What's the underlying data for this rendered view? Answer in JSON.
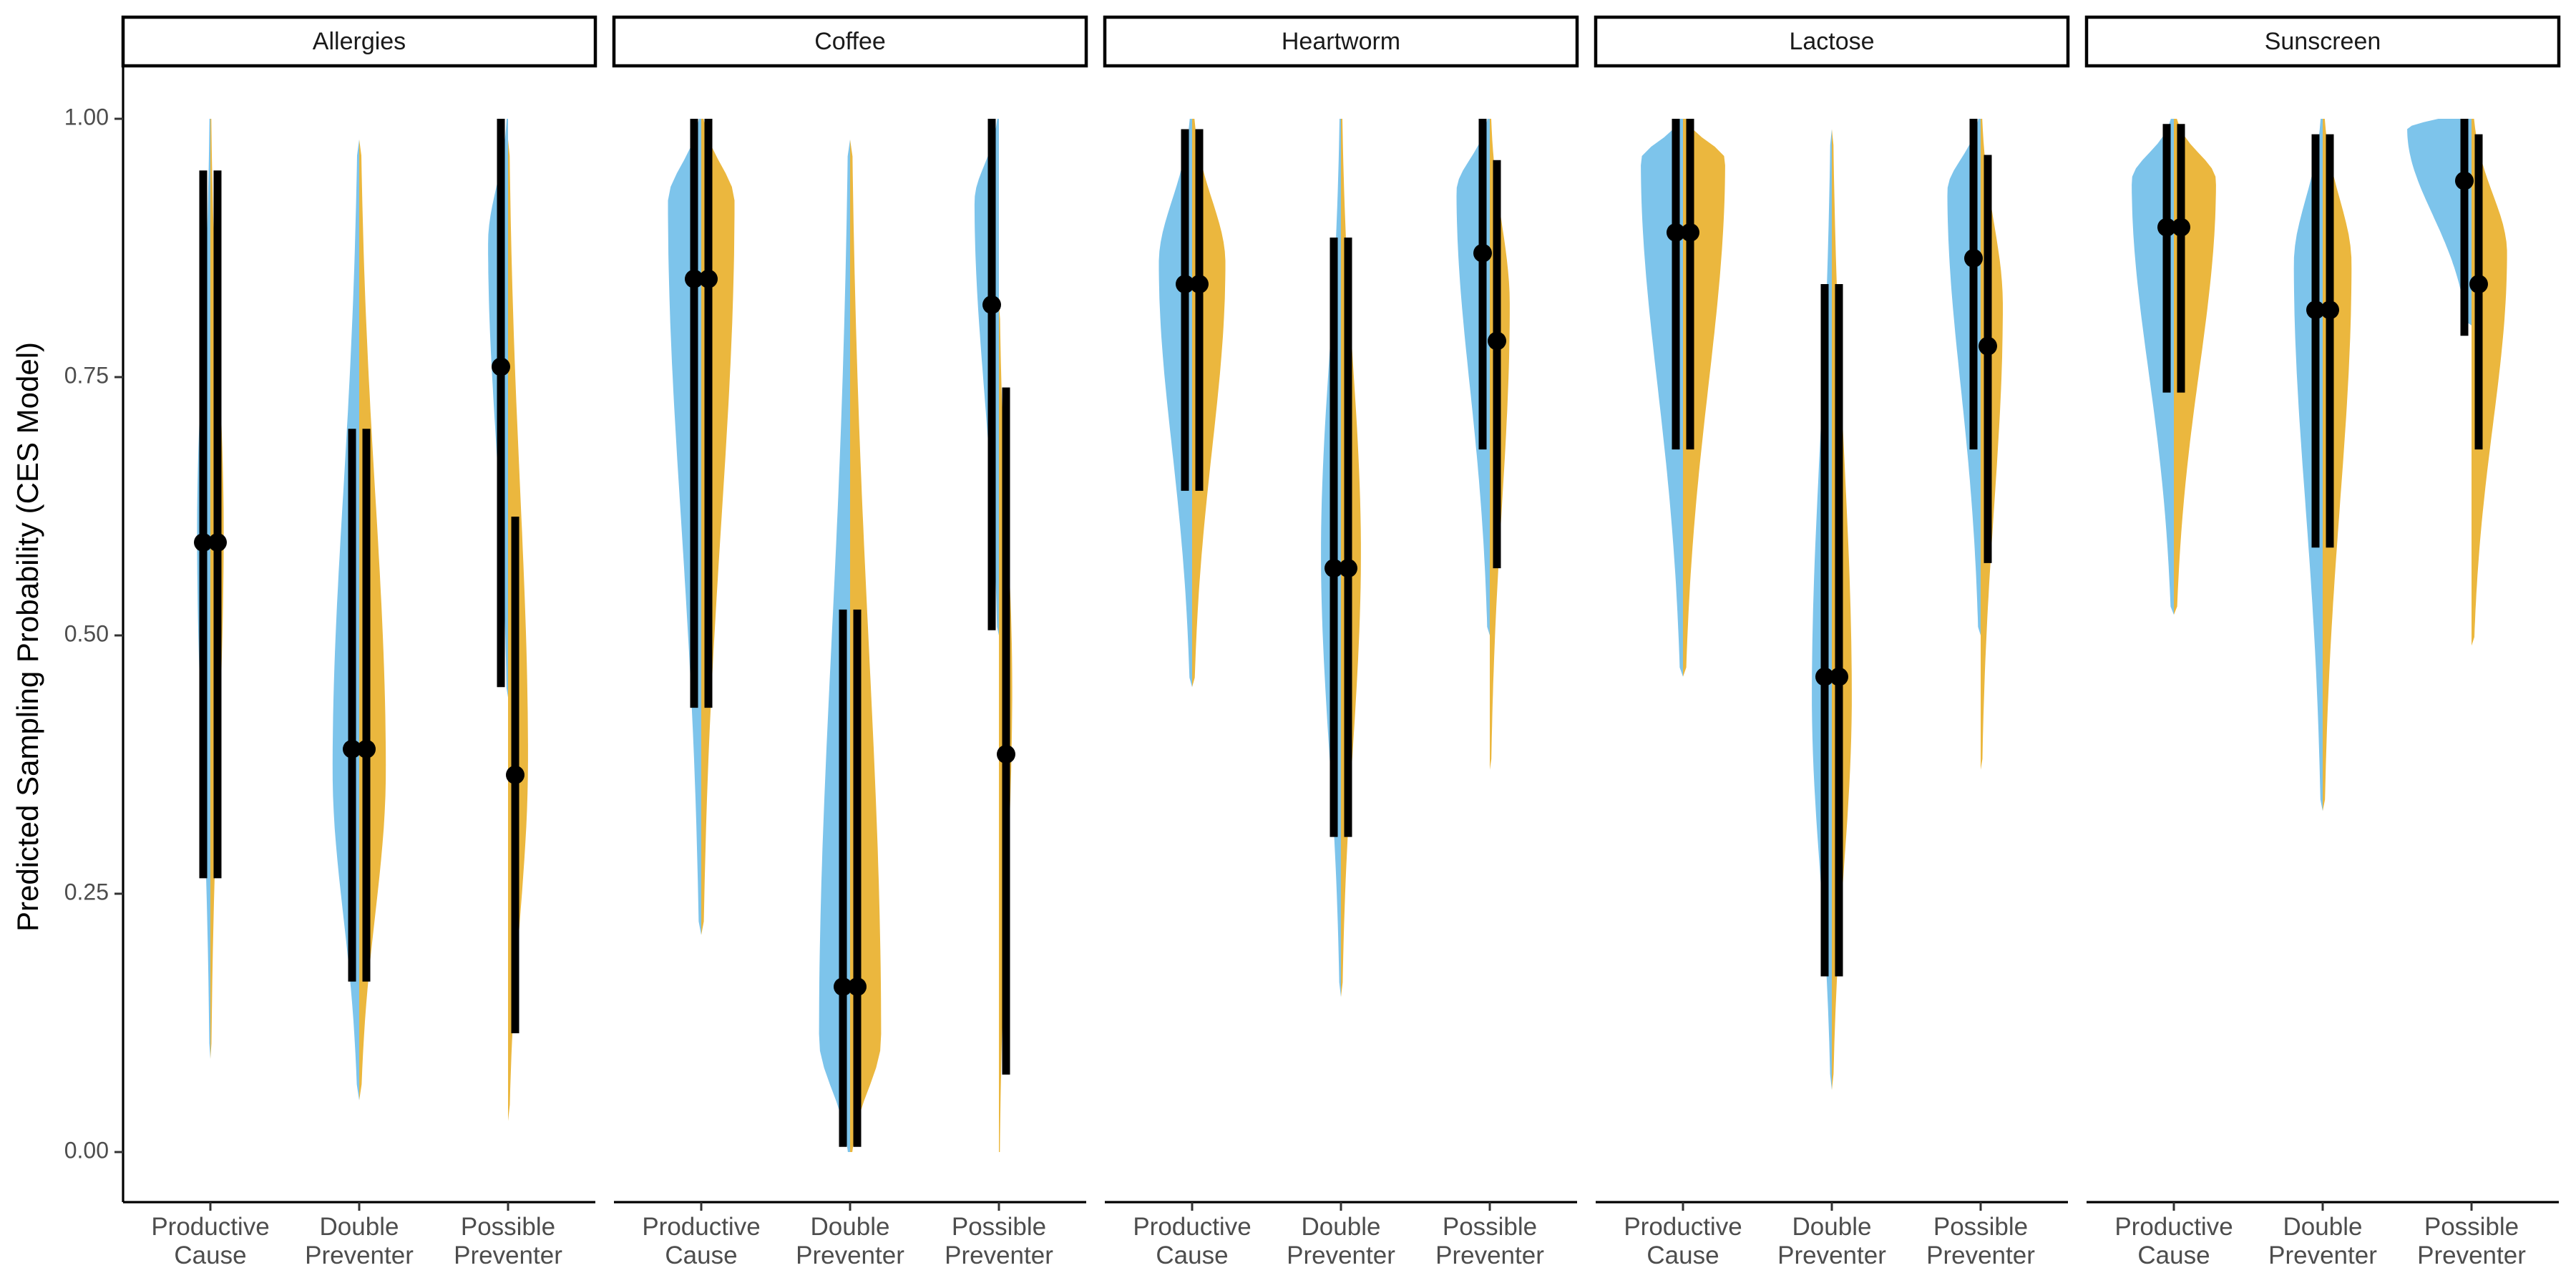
{
  "chart_data": {
    "type": "violin",
    "ylabel": "Predicted Sampling Probability (CES Model)",
    "ylim": [
      0,
      1
    ],
    "yticks": [
      0,
      0.25,
      0.5,
      0.75,
      1
    ],
    "ytick_labels": [
      "0.00",
      "0.25",
      "0.50",
      "0.75",
      "1.00"
    ],
    "categories": [
      {
        "key": "pc",
        "lines": [
          "Productive",
          "Cause"
        ]
      },
      {
        "key": "dp",
        "lines": [
          "Double",
          "Preventer"
        ]
      },
      {
        "key": "pp",
        "lines": [
          "Possible",
          "Preventer"
        ]
      }
    ],
    "half_colors": {
      "left": "#7DC4EB",
      "right": "#EBB73E"
    },
    "facets": [
      {
        "name": "Allergies",
        "groups": {
          "pc": {
            "left": {
              "point": 0.59,
              "ci": [
                0.265,
                0.95
              ],
              "range": [
                0.09,
                1.0
              ],
              "mode": 0.6,
              "width": 0.3
            },
            "right": {
              "point": 0.59,
              "ci": [
                0.265,
                0.95
              ],
              "range": [
                0.09,
                1.0
              ],
              "mode": 0.6,
              "width": 0.3
            }
          },
          "dp": {
            "left": {
              "point": 0.39,
              "ci": [
                0.165,
                0.7
              ],
              "range": [
                0.05,
                0.98
              ],
              "mode": 0.37,
              "width": 0.6
            },
            "right": {
              "point": 0.39,
              "ci": [
                0.165,
                0.7
              ],
              "range": [
                0.05,
                0.98
              ],
              "mode": 0.37,
              "width": 0.6
            }
          },
          "pp": {
            "left": {
              "point": 0.76,
              "ci": [
                0.45,
                1.0
              ],
              "range": [
                0.44,
                1.0
              ],
              "mode": 0.88,
              "width": 0.45
            },
            "right": {
              "point": 0.365,
              "ci": [
                0.115,
                0.615
              ],
              "range": [
                0.03,
                0.98
              ],
              "mode": 0.38,
              "width": 0.45
            }
          }
        }
      },
      {
        "name": "Coffee",
        "groups": {
          "pc": {
            "left": {
              "point": 0.845,
              "ci": [
                0.43,
                1.0
              ],
              "range": [
                0.21,
                1.0
              ],
              "mode": 0.92,
              "width": 0.75
            },
            "right": {
              "point": 0.845,
              "ci": [
                0.43,
                1.0
              ],
              "range": [
                0.21,
                1.0
              ],
              "mode": 0.92,
              "width": 0.75
            }
          },
          "dp": {
            "left": {
              "point": 0.16,
              "ci": [
                0.005,
                0.525
              ],
              "range": [
                0.0,
                0.98
              ],
              "mode": 0.11,
              "width": 0.7
            },
            "right": {
              "point": 0.16,
              "ci": [
                0.005,
                0.525
              ],
              "range": [
                0.0,
                0.98
              ],
              "mode": 0.11,
              "width": 0.7
            }
          },
          "pp": {
            "left": {
              "point": 0.82,
              "ci": [
                0.505,
                1.0
              ],
              "range": [
                0.5,
                1.0
              ],
              "mode": 0.92,
              "width": 0.55
            },
            "right": {
              "point": 0.385,
              "ci": [
                0.075,
                0.74
              ],
              "range": [
                0.0,
                0.82
              ],
              "mode": 0.45,
              "width": 0.3
            }
          }
        }
      },
      {
        "name": "Heartworm",
        "groups": {
          "pc": {
            "left": {
              "point": 0.84,
              "ci": [
                0.64,
                0.99
              ],
              "range": [
                0.45,
                1.0
              ],
              "mode": 0.86,
              "width": 0.75
            },
            "right": {
              "point": 0.84,
              "ci": [
                0.64,
                0.99
              ],
              "range": [
                0.45,
                1.0
              ],
              "mode": 0.86,
              "width": 0.75
            }
          },
          "dp": {
            "left": {
              "point": 0.565,
              "ci": [
                0.305,
                0.885
              ],
              "range": [
                0.15,
                1.0
              ],
              "mode": 0.58,
              "width": 0.45
            },
            "right": {
              "point": 0.565,
              "ci": [
                0.305,
                0.885
              ],
              "range": [
                0.15,
                1.0
              ],
              "mode": 0.58,
              "width": 0.45
            }
          },
          "pp": {
            "left": {
              "point": 0.87,
              "ci": [
                0.68,
                1.0
              ],
              "range": [
                0.5,
                1.0
              ],
              "mode": 0.93,
              "width": 0.75
            },
            "right": {
              "point": 0.785,
              "ci": [
                0.565,
                0.96
              ],
              "range": [
                0.37,
                1.0
              ],
              "mode": 0.82,
              "width": 0.45
            }
          }
        }
      },
      {
        "name": "Lactose",
        "groups": {
          "pc": {
            "left": {
              "point": 0.89,
              "ci": [
                0.68,
                1.0
              ],
              "range": [
                0.46,
                1.0
              ],
              "mode": 0.96,
              "width": 0.95
            },
            "right": {
              "point": 0.89,
              "ci": [
                0.68,
                1.0
              ],
              "range": [
                0.46,
                1.0
              ],
              "mode": 0.96,
              "width": 0.95
            }
          },
          "dp": {
            "left": {
              "point": 0.46,
              "ci": [
                0.17,
                0.84
              ],
              "range": [
                0.06,
                0.99
              ],
              "mode": 0.44,
              "width": 0.45
            },
            "right": {
              "point": 0.46,
              "ci": [
                0.17,
                0.84
              ],
              "range": [
                0.06,
                0.99
              ],
              "mode": 0.44,
              "width": 0.45
            }
          },
          "pp": {
            "left": {
              "point": 0.865,
              "ci": [
                0.68,
                1.0
              ],
              "range": [
                0.5,
                1.0
              ],
              "mode": 0.93,
              "width": 0.75
            },
            "right": {
              "point": 0.78,
              "ci": [
                0.57,
                0.965
              ],
              "range": [
                0.37,
                1.0
              ],
              "mode": 0.82,
              "width": 0.5
            }
          }
        }
      },
      {
        "name": "Sunscreen",
        "groups": {
          "pc": {
            "left": {
              "point": 0.895,
              "ci": [
                0.735,
                0.995
              ],
              "range": [
                0.52,
                1.0
              ],
              "mode": 0.94,
              "width": 0.95
            },
            "right": {
              "point": 0.895,
              "ci": [
                0.735,
                0.995
              ],
              "range": [
                0.52,
                1.0
              ],
              "mode": 0.94,
              "width": 0.95
            }
          },
          "dp": {
            "left": {
              "point": 0.815,
              "ci": [
                0.585,
                0.985
              ],
              "range": [
                0.33,
                1.0
              ],
              "mode": 0.86,
              "width": 0.65
            },
            "right": {
              "point": 0.815,
              "ci": [
                0.585,
                0.985
              ],
              "range": [
                0.33,
                1.0
              ],
              "mode": 0.86,
              "width": 0.65
            }
          },
          "pp": {
            "left": {
              "point": 0.94,
              "ci": [
                0.79,
                1.0
              ],
              "range": [
                0.8,
                1.0
              ],
              "mode": 0.99,
              "width": 1.45
            },
            "right": {
              "point": 0.84,
              "ci": [
                0.68,
                0.985
              ],
              "range": [
                0.49,
                1.0
              ],
              "mode": 0.87,
              "width": 0.8
            }
          }
        }
      }
    ]
  }
}
